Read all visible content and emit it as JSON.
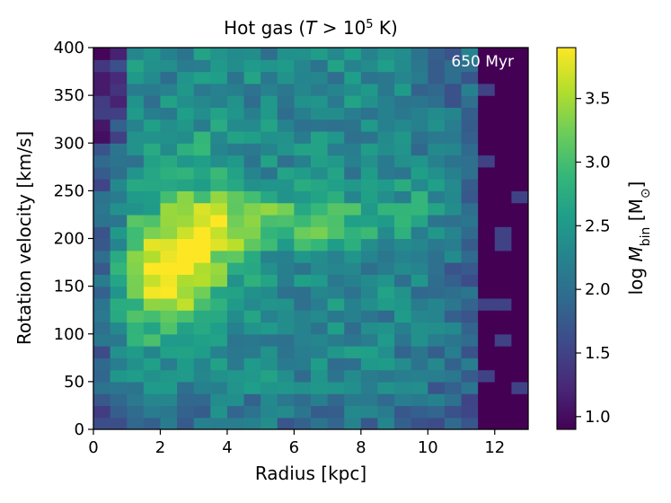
{
  "chart_data": {
    "type": "heatmap",
    "title": {
      "prefix": "Hot gas (",
      "var": "T",
      "op": " > 10",
      "exp": "5",
      "suffix": " K)"
    },
    "xlabel": "Radius [kpc]",
    "ylabel": "Rotation velocity [km/s]",
    "colorbar_label": {
      "prefix": "log ",
      "var": "M",
      "sub": "bin",
      "open": " [M",
      "sun": "⊙",
      "close": "]"
    },
    "annotation": "650 Myr",
    "xlim": [
      0,
      13
    ],
    "ylim": [
      0,
      400
    ],
    "clim": [
      0.9,
      3.9
    ],
    "colormap": "viridis",
    "xticks": [
      0,
      2,
      4,
      6,
      8,
      10,
      12
    ],
    "xtick_labels": [
      "0",
      "2",
      "4",
      "6",
      "8",
      "10",
      "12"
    ],
    "yticks": [
      0,
      50,
      100,
      150,
      200,
      250,
      300,
      350,
      400
    ],
    "ytick_labels": [
      "0",
      "50",
      "100",
      "150",
      "200",
      "250",
      "300",
      "350",
      "400"
    ],
    "cticks": [
      1.0,
      1.5,
      2.0,
      2.5,
      3.0,
      3.5
    ],
    "ctick_labels": [
      "1.0",
      "1.5",
      "2.0",
      "2.5",
      "3.0",
      "3.5"
    ],
    "bin_width_x": 0.5,
    "bin_width_y": 12.5,
    "grid": "off",
    "background_value": 0.9,
    "hotspots": [
      {
        "x": 1.8,
        "y": 160,
        "sx": 0.8,
        "sy": 45,
        "amp": 1.1
      },
      {
        "x": 3.0,
        "y": 175,
        "sx": 0.9,
        "sy": 40,
        "amp": 1.1
      },
      {
        "x": 3.8,
        "y": 215,
        "sx": 1.0,
        "sy": 25,
        "amp": 0.7
      },
      {
        "x": 5.5,
        "y": 218,
        "sx": 1.2,
        "sy": 20,
        "amp": 0.6
      },
      {
        "x": 7.5,
        "y": 220,
        "sx": 1.2,
        "sy": 20,
        "amp": 0.55
      },
      {
        "x": 9.8,
        "y": 240,
        "sx": 0.5,
        "sy": 30,
        "amp": 0.4
      },
      {
        "x": 3.2,
        "y": 280,
        "sx": 0.8,
        "sy": 40,
        "amp": 0.3
      }
    ],
    "base_level": 2.3,
    "inner_edge_kpc": 1.0,
    "outer_edge_kpc": 11.5,
    "low_velocity_dip": 0.3
  }
}
